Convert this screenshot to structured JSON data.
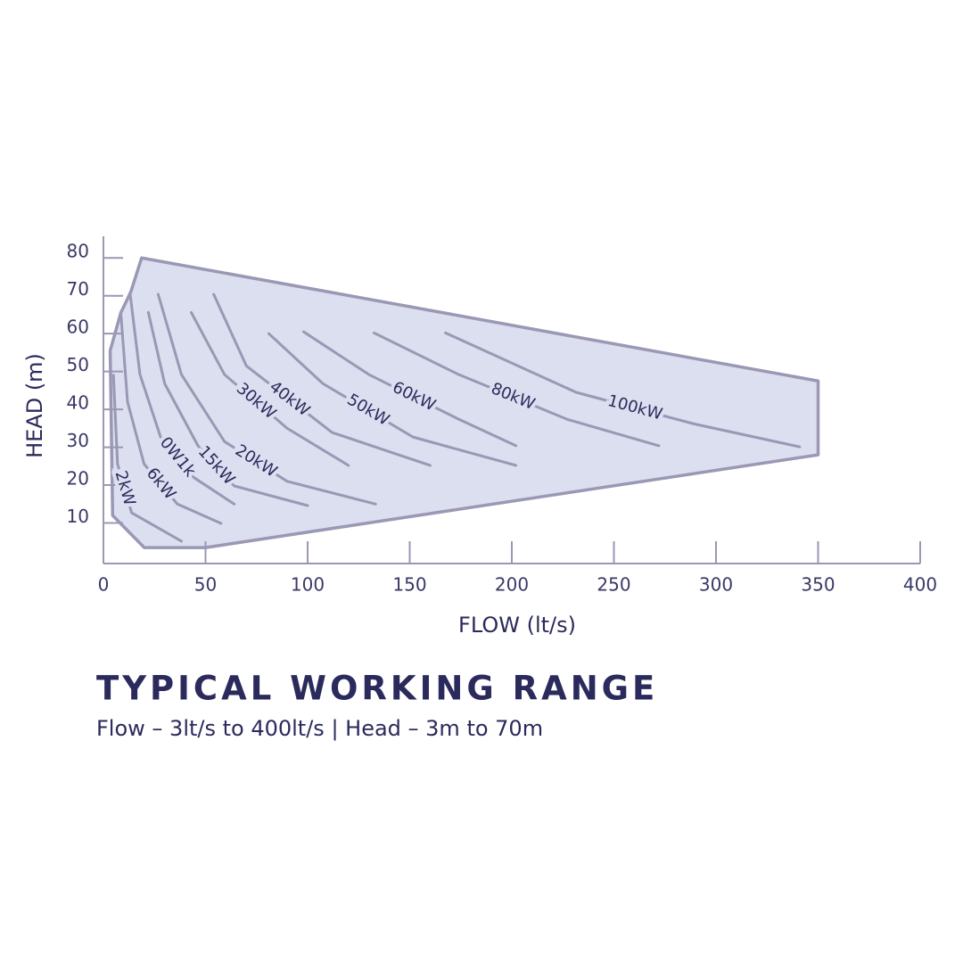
{
  "chart_data": {
    "type": "line",
    "title": "TYPICAL WORKING RANGE",
    "subtitle": "Flow – 3lt/s to 400lt/s | Head – 3m to 70m",
    "x_label": "FLOW (lt/s)",
    "y_label": "HEAD (m)",
    "xlim": [
      0,
      400
    ],
    "xticks": [
      0,
      50,
      100,
      150,
      200,
      250,
      300,
      350,
      400
    ],
    "ylim": [
      0,
      85
    ],
    "yticks": [
      10,
      20,
      30,
      40,
      50,
      60,
      70,
      80
    ],
    "line_color": "#9a98b4",
    "fill_color": "#dcdff0",
    "envelope": {
      "x": [
        18.7,
        350,
        350,
        50,
        20,
        4.5,
        3.3,
        8.5,
        13.4
      ],
      "y": [
        80,
        47.5,
        28,
        3.5,
        3.5,
        12,
        55.5,
        65.5,
        71
      ]
    },
    "series": [
      {
        "name": "2kW",
        "x": [
          4.9,
          6.9,
          13.8,
          38.2
        ],
        "values": [
          49,
          25.6,
          12.7,
          5.2
        ]
      },
      {
        "name": "6kW",
        "x": [
          8.5,
          11.8,
          19.9,
          36.2,
          57.6
        ],
        "values": [
          65.6,
          42,
          25.6,
          15,
          9.9
        ]
      },
      {
        "name": "0W1k",
        "x": [
          13,
          17.9,
          28,
          44.3,
          64
        ],
        "values": [
          70.8,
          49.2,
          32.7,
          22,
          15
        ]
      },
      {
        "name": "15kW",
        "x": [
          22,
          30,
          46.3,
          64,
          100
        ],
        "values": [
          65.6,
          46.8,
          30.4,
          19.8,
          14.6
        ]
      },
      {
        "name": "20kW",
        "x": [
          26.8,
          38.2,
          59.3,
          90,
          133.3
        ],
        "values": [
          70.4,
          49.2,
          31.5,
          21,
          15
        ]
      },
      {
        "name": "30kW",
        "x": [
          43,
          59.3,
          90,
          120
        ],
        "values": [
          65.6,
          49.2,
          35,
          25.2
        ]
      },
      {
        "name": "40kW",
        "x": [
          54,
          70,
          112,
          160
        ],
        "values": [
          70.4,
          51.5,
          33.9,
          25.2
        ]
      },
      {
        "name": "50kW",
        "x": [
          81,
          107.5,
          151.6,
          202
        ],
        "values": [
          60,
          46.8,
          32.7,
          25.2
        ]
      },
      {
        "name": "60kW",
        "x": [
          98,
          130,
          174,
          202
        ],
        "values": [
          60.5,
          49.2,
          37.4,
          30.4
        ]
      },
      {
        "name": "80kW",
        "x": [
          132.5,
          174,
          227,
          272
        ],
        "values": [
          60.2,
          49.2,
          37.4,
          30.4
        ]
      },
      {
        "name": "100kW",
        "x": [
          167.5,
          231.5,
          289,
          341
        ],
        "values": [
          60.2,
          44.5,
          36.2,
          30.1
        ]
      }
    ]
  }
}
